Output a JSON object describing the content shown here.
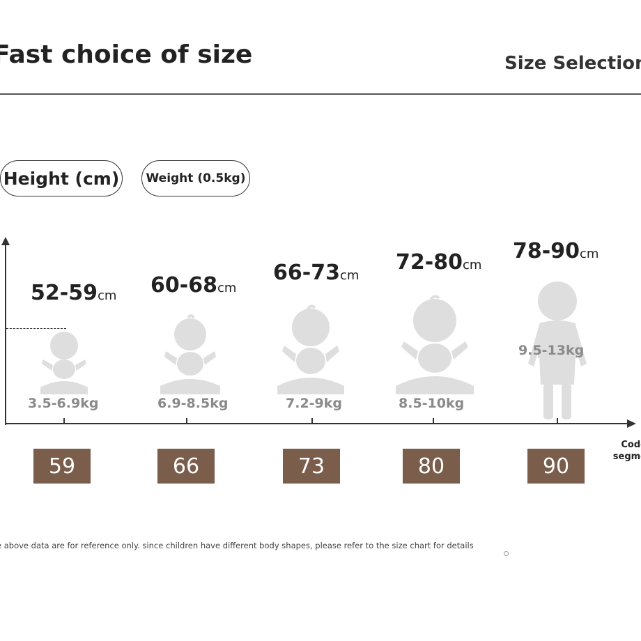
{
  "header": {
    "title": "Fast choice of size",
    "subtitle": "Size Selection"
  },
  "legend": {
    "height_pill": "Height (cm)",
    "weight_pill": "Weight (0.5kg)"
  },
  "axis": {
    "x_caption_line1": "Code",
    "x_caption_line2": "segme"
  },
  "sizes": [
    {
      "height_range": "52-59",
      "unit": "cm",
      "weight": "3.5-6.9kg",
      "code": "59"
    },
    {
      "height_range": "60-68",
      "unit": "cm",
      "weight": "6.9-8.5kg",
      "code": "66"
    },
    {
      "height_range": "66-73",
      "unit": "cm",
      "weight": "7.2-9kg",
      "code": "73"
    },
    {
      "height_range": "72-80",
      "unit": "cm",
      "weight": "8.5-10kg",
      "code": "80"
    },
    {
      "height_range": "78-90",
      "unit": "cm",
      "weight": "9.5-13kg",
      "code": "90"
    }
  ],
  "footer": {
    "note": "e above data are for reference only. since children have different body shapes, please refer to the size chart for details"
  },
  "colors": {
    "badge": "#7b5d4b",
    "silhouette": "#dddddd",
    "weight_text": "#8a8a8a"
  },
  "icons": [
    "baby-sitting-icon",
    "toddler-standing-icon"
  ]
}
